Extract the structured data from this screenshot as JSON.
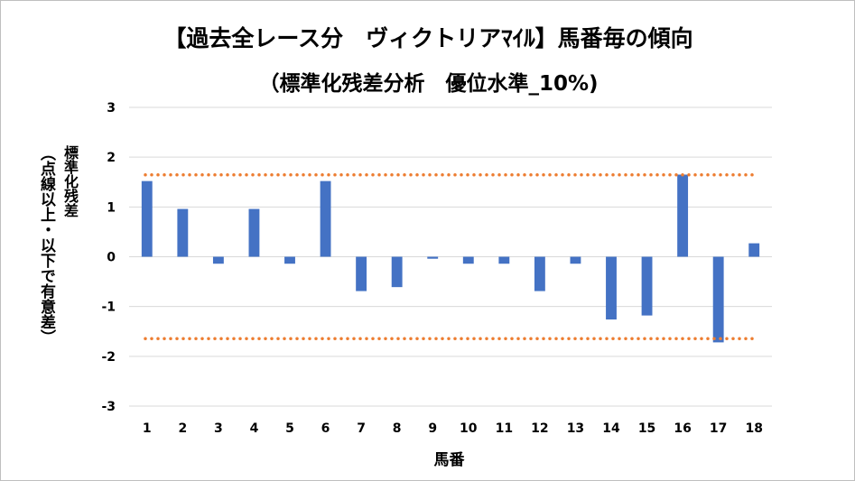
{
  "title_line1": "【過去全レース分　ヴィクトリアﾏｲﾙ】馬番毎の傾向",
  "title_line2": "（標準化残差分析　優位水準_10%)",
  "ylabel": "標準化残差",
  "ylabel_sub": "（点線以上・以下で有意差）",
  "xlabel": "馬番",
  "colors": {
    "bar": "#4472C4",
    "threshold": "#ED7D31",
    "grid": "#D9D9D9"
  },
  "chart_data": {
    "type": "bar",
    "title": "【過去全レース分　ヴィクトリアﾏｲﾙ】馬番毎の傾向 （標準化残差分析　優位水準_10%)",
    "xlabel": "馬番",
    "ylabel": "標準化残差",
    "ylim": [
      -3,
      3
    ],
    "yticks": [
      3,
      2,
      1,
      0,
      -1,
      -2,
      -3
    ],
    "grid": true,
    "categories": [
      "1",
      "2",
      "3",
      "4",
      "5",
      "6",
      "7",
      "8",
      "9",
      "10",
      "11",
      "12",
      "13",
      "14",
      "15",
      "16",
      "17",
      "18"
    ],
    "values": [
      1.52,
      0.96,
      -0.14,
      0.96,
      -0.14,
      1.52,
      -0.69,
      -0.61,
      -0.04,
      -0.14,
      -0.14,
      -0.69,
      -0.14,
      -1.26,
      -1.18,
      1.65,
      -1.72,
      0.27
    ],
    "thresholds": [
      1.645,
      -1.645
    ]
  }
}
